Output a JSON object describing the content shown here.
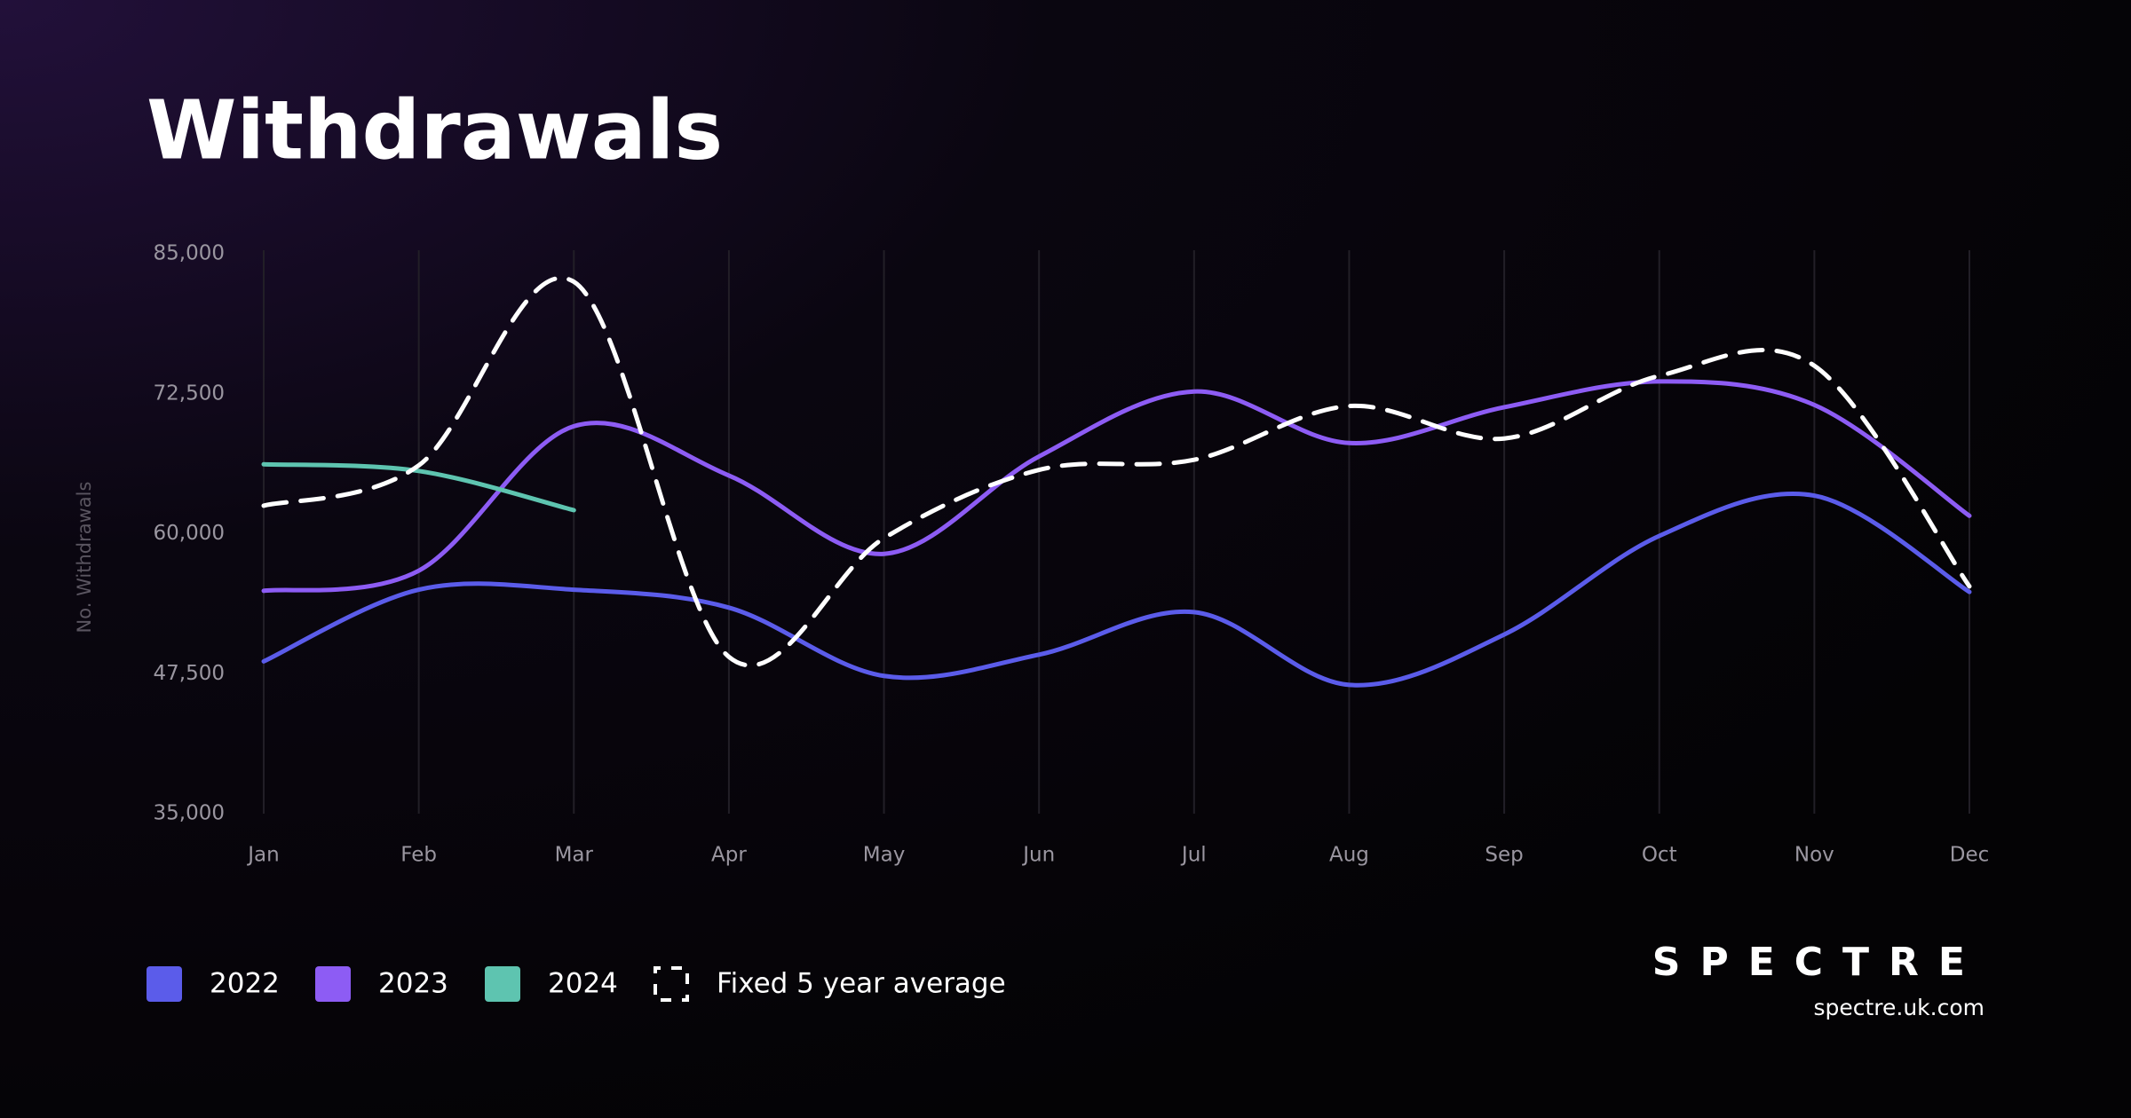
{
  "chart_data": {
    "type": "line",
    "title": "Withdrawals",
    "y_label": "No. Withdrawals",
    "categories": [
      "Jan",
      "Feb",
      "Mar",
      "Apr",
      "May",
      "Jun",
      "Jul",
      "Aug",
      "Sep",
      "Oct",
      "Nov",
      "Dec"
    ],
    "series": [
      {
        "name": "2022",
        "color": "#5b5cea",
        "values": [
          48600,
          55000,
          55000,
          53400,
          47300,
          49200,
          53000,
          46500,
          51000,
          59800,
          63400,
          54800
        ]
      },
      {
        "name": "2023",
        "color": "#8d5cf4",
        "values": [
          54900,
          56700,
          69600,
          65200,
          58200,
          66900,
          72700,
          68100,
          71300,
          73600,
          71500,
          61600
        ]
      },
      {
        "name": "2024",
        "color": "#5ec4b0",
        "values": [
          66200,
          65600,
          62100,
          null,
          null,
          null,
          null,
          null,
          null,
          null,
          null,
          null
        ]
      },
      {
        "name": "Fixed 5 year average",
        "color": "#ffffff",
        "dashed": true,
        "values": [
          62500,
          66100,
          82500,
          49000,
          59600,
          65700,
          66600,
          71400,
          68500,
          74100,
          75000,
          55300
        ]
      }
    ],
    "ylim": [
      35000,
      85000
    ],
    "yticks": [
      {
        "value": 35000,
        "label": "35,000"
      },
      {
        "value": 47500,
        "label": "47,500"
      },
      {
        "value": 60000,
        "label": "60,000"
      },
      {
        "value": 72500,
        "label": "72,500"
      },
      {
        "value": 85000,
        "label": "85,000"
      }
    ],
    "grid": true,
    "legend": "bottom-left"
  },
  "brand": {
    "logo": "SPECTRE",
    "website": "spectre.uk.com"
  }
}
